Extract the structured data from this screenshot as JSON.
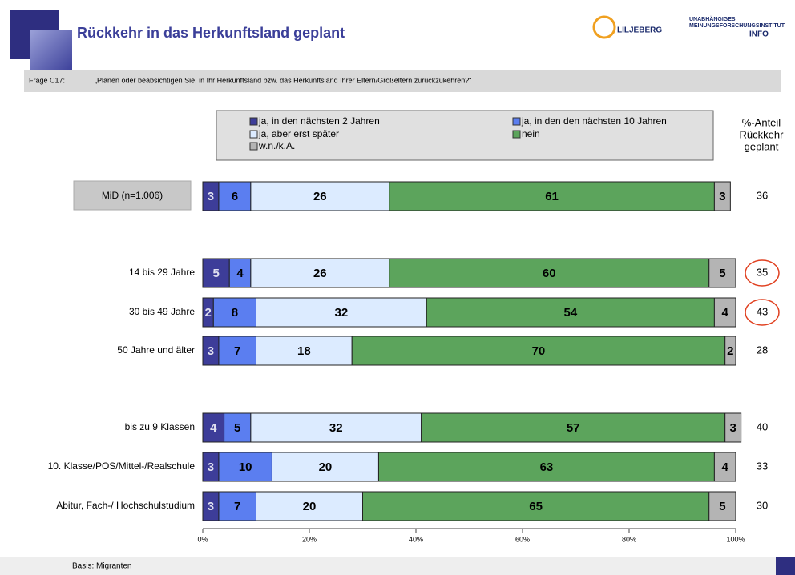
{
  "header": {
    "title": "Rückkehr in das Herkunftsland geplant",
    "logo1": "LILJEBERG",
    "logo2_line1": "UNABHÄNGIGES",
    "logo2_line2": "MEINUNGSFORSCHUNGSINSTITUT",
    "logo2_line3": "INFO"
  },
  "question": {
    "label": "Frage C17:",
    "text": "„Planen oder beabsichtigen Sie, in Ihr Herkunftsland bzw. das Herkunftsland Ihrer Eltern/Großeltern zurückzukehren?“"
  },
  "footer": "Basis: Migranten",
  "chart_data": {
    "type": "stacked-bar-horizontal",
    "categories": [
      "MiD (n=1.006)",
      "14 bis 29 Jahre",
      "30 bis 49 Jahre",
      "50 Jahre und älter",
      "bis zu 9 Klassen",
      "10. Klasse/POS/Mittel-/Realschule",
      "Abitur, Fach-/ Hochschulstudium"
    ],
    "series": [
      {
        "name": "ja, in den nächsten 2 Jahren",
        "color": "#3d3d99",
        "values": [
          3,
          5,
          2,
          3,
          4,
          3,
          3
        ]
      },
      {
        "name": "ja, in den den nächsten 10 Jahren",
        "color": "#5b7ef0",
        "values": [
          6,
          4,
          8,
          7,
          5,
          10,
          7
        ]
      },
      {
        "name": "ja, aber erst später",
        "color": "#dcebff",
        "values": [
          26,
          26,
          32,
          18,
          32,
          20,
          20
        ]
      },
      {
        "name": "nein",
        "color": "#5ca45c",
        "values": [
          61,
          60,
          54,
          70,
          57,
          63,
          65
        ]
      },
      {
        "name": "w.n./k.A.",
        "color": "#b4b4b4",
        "values": [
          3,
          5,
          4,
          2,
          3,
          4,
          5
        ]
      }
    ],
    "share_title": [
      "%-Anteil",
      "Rückkehr",
      "geplant"
    ],
    "share_values": [
      36,
      35,
      43,
      28,
      40,
      33,
      30
    ],
    "xlim": [
      0,
      100
    ],
    "xticks": [
      {
        "value": 0,
        "label": "0%"
      },
      {
        "value": 20,
        "label": "20%"
      },
      {
        "value": 40,
        "label": "40%"
      },
      {
        "value": 60,
        "label": "60%"
      },
      {
        "value": 80,
        "label": "80%"
      },
      {
        "value": 100,
        "label": "100%"
      }
    ]
  }
}
